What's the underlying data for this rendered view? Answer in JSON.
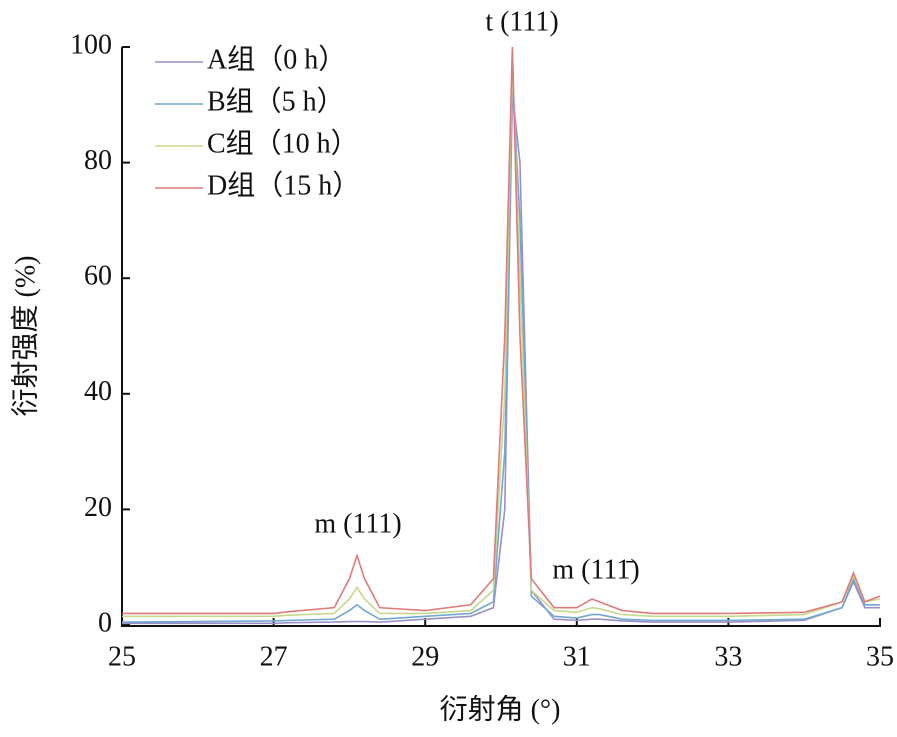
{
  "chart_data": {
    "type": "line",
    "xlabel": "衍射角 (°)",
    "ylabel": "衍射强度 (%)",
    "annotations": [
      "t (111)",
      "m (111)",
      "m (111̄)"
    ],
    "x": [
      25,
      26,
      27,
      27.2,
      27.8,
      28.0,
      28.1,
      28.2,
      28.4,
      29,
      29.6,
      29.9,
      30.05,
      30.15,
      30.25,
      30.4,
      30.7,
      31,
      31.2,
      31.3,
      31.6,
      32,
      33,
      34,
      34.5,
      34.65,
      34.8,
      35
    ],
    "series": [
      {
        "name": "A组（0 h）",
        "color": "#9b8fc8",
        "values": [
          0.3,
          0.3,
          0.3,
          0.4,
          0.5,
          0.6,
          0.6,
          0.6,
          0.5,
          1,
          1.5,
          3,
          20,
          92,
          80,
          6,
          1,
          0.8,
          1,
          1,
          0.7,
          0.5,
          0.5,
          0.8,
          3,
          7.5,
          3,
          3
        ]
      },
      {
        "name": "B组（5 h）",
        "color": "#6fa8d0",
        "values": [
          0.5,
          0.6,
          0.7,
          0.8,
          1,
          2.5,
          3.5,
          2.5,
          1,
          1.5,
          2,
          4,
          30,
          95,
          70,
          5,
          1.5,
          1.2,
          1.8,
          1.8,
          1,
          0.8,
          0.8,
          1,
          3,
          8,
          3.5,
          3.5
        ]
      },
      {
        "name": "C组（10 h）",
        "color": "#c8d88a",
        "values": [
          1.5,
          1.5,
          1.5,
          1.7,
          2,
          4.5,
          6.5,
          4.5,
          2,
          2,
          2.5,
          6,
          40,
          98,
          60,
          6,
          2.5,
          2.2,
          3,
          2.8,
          1.8,
          1.5,
          1.5,
          1.8,
          4,
          8.5,
          4,
          4.5
        ]
      },
      {
        "name": "D组（15 h）",
        "color": "#e07a7a",
        "values": [
          2,
          2,
          2,
          2.3,
          3,
          8,
          12,
          8,
          3,
          2.5,
          3.5,
          8,
          50,
          100,
          50,
          8,
          3,
          3,
          4.5,
          4,
          2.5,
          2,
          2,
          2.2,
          4,
          9,
          4,
          5
        ]
      }
    ],
    "xlim": [
      25,
      35
    ],
    "xticks": [
      25,
      27,
      29,
      31,
      33,
      35
    ],
    "ylim": [
      0,
      100
    ],
    "yticks": [
      0,
      20,
      40,
      60,
      80,
      100
    ],
    "legend": "upper left"
  }
}
